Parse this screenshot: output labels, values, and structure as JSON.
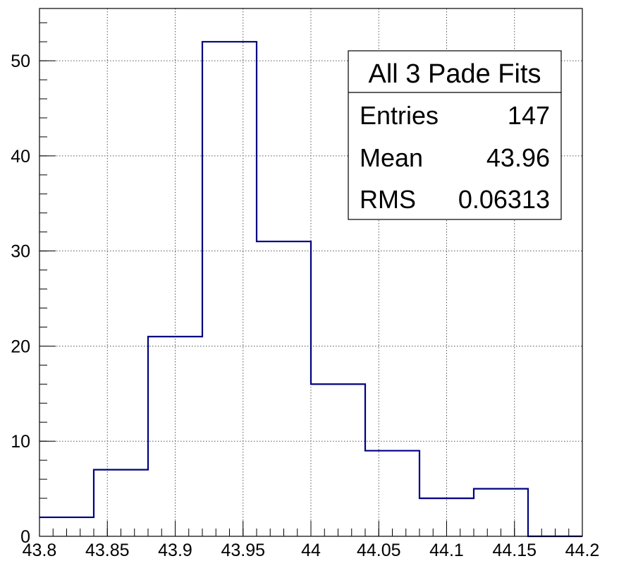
{
  "chart_data": {
    "type": "bar",
    "histogram": true,
    "bin_edges": [
      43.8,
      43.84,
      43.88,
      43.92,
      43.96,
      44.0,
      44.04,
      44.08,
      44.12,
      44.16,
      44.2
    ],
    "values": [
      2,
      7,
      21,
      52,
      31,
      16,
      9,
      4,
      5,
      0
    ],
    "xlim": [
      43.8,
      44.2
    ],
    "ylim": [
      0,
      55.5
    ],
    "x_ticks": [
      "43.8",
      "43.85",
      "43.9",
      "43.95",
      "44",
      "44.05",
      "44.1",
      "44.15",
      "44.2"
    ],
    "y_ticks": [
      "0",
      "10",
      "20",
      "30",
      "40",
      "50"
    ],
    "grid": true,
    "line_color": "#000080",
    "stats_box": {
      "title": "All 3 Pade Fits",
      "rows": [
        {
          "label": "Entries",
          "value": "147"
        },
        {
          "label": "Mean",
          "value": "43.96"
        },
        {
          "label": "RMS",
          "value": "0.06313"
        }
      ]
    }
  }
}
